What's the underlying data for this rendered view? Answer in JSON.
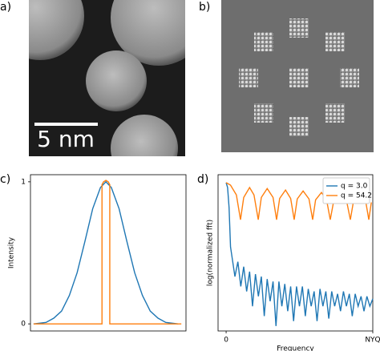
{
  "images": [
    {
      "label": "a)",
      "scale_bar": "5 nm"
    },
    {
      "label": "b)"
    }
  ],
  "chart_data": [
    {
      "type": "line",
      "panel_label": "c)",
      "ylabel": "Intensity",
      "xlim": [
        0,
        100
      ],
      "ylim": [
        -0.05,
        1.05
      ],
      "yticks": [
        0,
        1
      ],
      "grid": false,
      "series": [
        {
          "color": "#1f77b4",
          "x": [
            2,
            10,
            15,
            20,
            25,
            30,
            35,
            40,
            45,
            48.5,
            52,
            57,
            62,
            67,
            72,
            77,
            82,
            87,
            95
          ],
          "values": [
            0,
            0.01,
            0.04,
            0.09,
            0.2,
            0.36,
            0.58,
            0.81,
            0.96,
            1,
            0.96,
            0.81,
            0.58,
            0.36,
            0.2,
            0.09,
            0.04,
            0.01,
            0
          ]
        },
        {
          "color": "#ff7f0e",
          "x": [
            2,
            46,
            46,
            47,
            48.5,
            50,
            51,
            51,
            97
          ],
          "values": [
            0,
            0,
            0.98,
            1,
            1.01,
            1,
            0.98,
            0,
            0
          ]
        }
      ]
    },
    {
      "type": "line",
      "panel_label": "d)",
      "xlabel": "Frequency",
      "ylabel": "log(normalized fft)",
      "xlim": [
        -0.055,
        1.0
      ],
      "ylim": [
        -3.0,
        0.16
      ],
      "xticks": [
        0,
        {
          "value": 1,
          "label": "NYQ"
        }
      ],
      "grid": false,
      "legend": "upper right",
      "series": [
        {
          "name": "q = 3.0",
          "color": "#1f77b4",
          "x": [
            0,
            0.01,
            0.02,
            0.03,
            0.04,
            0.06,
            0.08,
            0.1,
            0.12,
            0.14,
            0.16,
            0.18,
            0.2,
            0.22,
            0.24,
            0.26,
            0.28,
            0.3,
            0.32,
            0.34,
            0.36,
            0.38,
            0.4,
            0.42,
            0.44,
            0.46,
            0.48,
            0.5,
            0.52,
            0.54,
            0.56,
            0.58,
            0.6,
            0.62,
            0.64,
            0.66,
            0.68,
            0.7,
            0.72,
            0.74,
            0.76,
            0.78,
            0.8,
            0.82,
            0.84,
            0.86,
            0.88,
            0.9,
            0.92,
            0.94,
            0.96,
            0.98,
            1.0
          ],
          "values": [
            0,
            -0.1,
            -0.5,
            -1.3,
            -1.5,
            -1.9,
            -1.6,
            -2.1,
            -1.7,
            -2.2,
            -1.8,
            -2.5,
            -1.85,
            -2.3,
            -1.9,
            -2.7,
            -1.95,
            -2.4,
            -2.0,
            -2.9,
            -2.0,
            -2.5,
            -2.05,
            -2.6,
            -2.1,
            -2.8,
            -2.1,
            -2.5,
            -2.1,
            -2.7,
            -2.15,
            -2.5,
            -2.2,
            -2.8,
            -2.15,
            -2.5,
            -2.2,
            -2.75,
            -2.2,
            -2.5,
            -2.25,
            -2.6,
            -2.2,
            -2.5,
            -2.25,
            -2.7,
            -2.25,
            -2.5,
            -2.3,
            -2.6,
            -2.3,
            -2.5,
            -2.35
          ]
        },
        {
          "name": "q = 54.2",
          "color": "#ff7f0e",
          "x": [
            0,
            0.03,
            0.07,
            0.098,
            0.12,
            0.16,
            0.19,
            0.219,
            0.24,
            0.28,
            0.32,
            0.344,
            0.365,
            0.405,
            0.44,
            0.464,
            0.485,
            0.525,
            0.565,
            0.59,
            0.61,
            0.65,
            0.685,
            0.71,
            0.735,
            0.78,
            0.82,
            0.847,
            0.87,
            0.91,
            0.95,
            0.973,
            0.99
          ],
          "values": [
            0,
            -0.05,
            -0.25,
            -0.75,
            -0.3,
            -0.1,
            -0.25,
            -0.75,
            -0.3,
            -0.12,
            -0.3,
            -0.75,
            -0.32,
            -0.15,
            -0.32,
            -0.75,
            -0.33,
            -0.17,
            -0.33,
            -0.75,
            -0.35,
            -0.2,
            -0.35,
            -0.75,
            -0.35,
            -0.2,
            -0.35,
            -0.75,
            -0.35,
            -0.22,
            -0.35,
            -0.75,
            -0.4
          ]
        }
      ]
    }
  ]
}
